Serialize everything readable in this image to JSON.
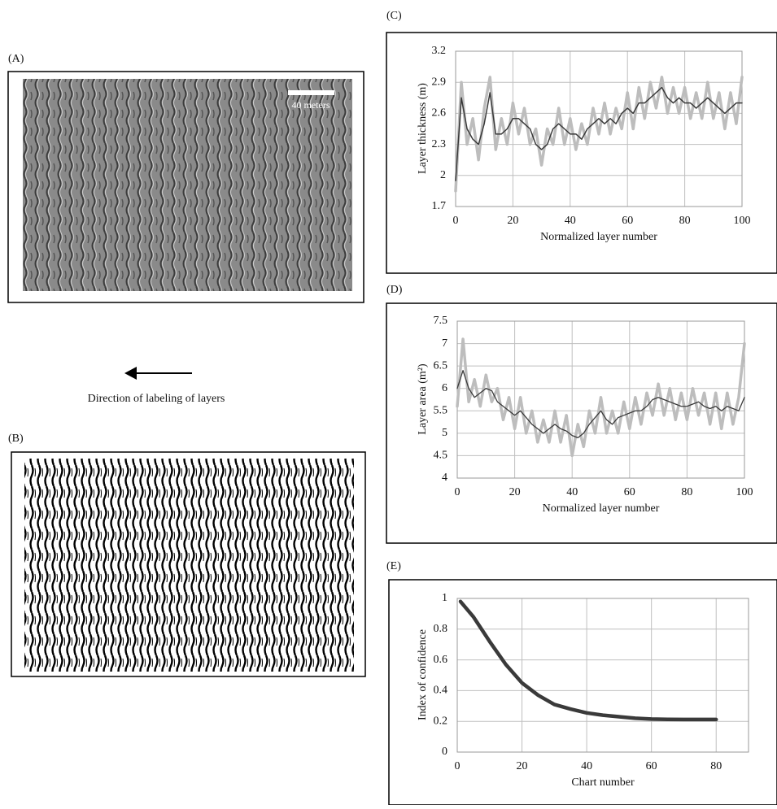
{
  "figure": {
    "panel_a": "(A)",
    "panel_b": "(B)",
    "scale_bar": "40 meters",
    "arrow_caption": "Direction of labeling of layers"
  },
  "chart_data": [
    {
      "type": "line",
      "panel_label": "(C)",
      "x_label": "Normalized layer number",
      "y_label": "Layer thickness (m)",
      "x": [
        0,
        2,
        4,
        6,
        8,
        10,
        12,
        14,
        16,
        18,
        20,
        22,
        24,
        26,
        28,
        30,
        32,
        34,
        36,
        38,
        40,
        42,
        44,
        46,
        48,
        50,
        52,
        54,
        56,
        58,
        60,
        62,
        64,
        66,
        68,
        70,
        72,
        74,
        76,
        78,
        80,
        82,
        84,
        86,
        88,
        90,
        92,
        94,
        96,
        98,
        100
      ],
      "series": [
        {
          "color": "#bdbdbd",
          "values": [
            1.85,
            2.9,
            2.3,
            2.55,
            2.15,
            2.65,
            2.95,
            2.25,
            2.55,
            2.3,
            2.7,
            2.4,
            2.65,
            2.3,
            2.45,
            2.1,
            2.45,
            2.3,
            2.65,
            2.3,
            2.55,
            2.25,
            2.5,
            2.3,
            2.65,
            2.4,
            2.7,
            2.4,
            2.65,
            2.45,
            2.8,
            2.45,
            2.85,
            2.55,
            2.9,
            2.65,
            2.95,
            2.6,
            2.85,
            2.6,
            2.85,
            2.55,
            2.8,
            2.55,
            2.9,
            2.55,
            2.8,
            2.45,
            2.8,
            2.5,
            2.95
          ]
        },
        {
          "color": "#3a3a3a",
          "values": [
            1.95,
            2.75,
            2.45,
            2.35,
            2.3,
            2.5,
            2.8,
            2.4,
            2.4,
            2.45,
            2.55,
            2.55,
            2.5,
            2.45,
            2.3,
            2.25,
            2.3,
            2.45,
            2.5,
            2.45,
            2.4,
            2.4,
            2.35,
            2.45,
            2.5,
            2.55,
            2.5,
            2.55,
            2.5,
            2.6,
            2.65,
            2.6,
            2.7,
            2.7,
            2.75,
            2.8,
            2.85,
            2.75,
            2.7,
            2.75,
            2.7,
            2.7,
            2.65,
            2.7,
            2.75,
            2.7,
            2.65,
            2.6,
            2.65,
            2.7,
            2.7
          ]
        }
      ],
      "xlim": [
        0,
        100
      ],
      "xticks": [
        0,
        20,
        40,
        60,
        80,
        100
      ],
      "ylim": [
        1.7,
        3.2
      ],
      "yticks": [
        1.7,
        2,
        2.3,
        2.6,
        2.9,
        3.2
      ],
      "grid": true
    },
    {
      "type": "line",
      "panel_label": "(D)",
      "x_label": "Normalized layer number",
      "y_label": "Layer area (m²)",
      "x": [
        0,
        2,
        4,
        6,
        8,
        10,
        12,
        14,
        16,
        18,
        20,
        22,
        24,
        26,
        28,
        30,
        32,
        34,
        36,
        38,
        40,
        42,
        44,
        46,
        48,
        50,
        52,
        54,
        56,
        58,
        60,
        62,
        64,
        66,
        68,
        70,
        72,
        74,
        76,
        78,
        80,
        82,
        84,
        86,
        88,
        90,
        92,
        94,
        96,
        98,
        100
      ],
      "series": [
        {
          "color": "#bdbdbd",
          "values": [
            5.6,
            7.1,
            5.7,
            6.2,
            5.6,
            6.3,
            5.7,
            6.0,
            5.3,
            5.8,
            5.1,
            5.8,
            5.0,
            5.5,
            4.8,
            5.3,
            4.8,
            5.5,
            4.8,
            5.4,
            4.5,
            5.2,
            4.7,
            5.5,
            5.0,
            5.8,
            5.0,
            5.5,
            5.0,
            5.7,
            5.1,
            5.8,
            5.2,
            5.9,
            5.4,
            6.1,
            5.4,
            6.0,
            5.3,
            5.9,
            5.3,
            6.0,
            5.4,
            5.9,
            5.2,
            5.9,
            5.1,
            5.9,
            5.2,
            5.8,
            7.0
          ]
        },
        {
          "color": "#3a3a3a",
          "values": [
            6.0,
            6.4,
            6.0,
            5.8,
            5.9,
            6.0,
            5.95,
            5.7,
            5.6,
            5.5,
            5.4,
            5.5,
            5.35,
            5.2,
            5.1,
            5.0,
            5.1,
            5.2,
            5.1,
            5.05,
            4.95,
            4.9,
            5.0,
            5.2,
            5.35,
            5.5,
            5.3,
            5.2,
            5.35,
            5.4,
            5.45,
            5.5,
            5.5,
            5.6,
            5.75,
            5.8,
            5.75,
            5.7,
            5.65,
            5.6,
            5.6,
            5.65,
            5.7,
            5.6,
            5.55,
            5.6,
            5.5,
            5.6,
            5.55,
            5.5,
            5.8
          ]
        }
      ],
      "xlim": [
        0,
        100
      ],
      "xticks": [
        0,
        20,
        40,
        60,
        80,
        100
      ],
      "ylim": [
        4,
        7.5
      ],
      "yticks": [
        4,
        4.5,
        5,
        5.5,
        6,
        6.5,
        7,
        7.5
      ],
      "grid": true
    },
    {
      "type": "line",
      "panel_label": "(E)",
      "x_label": "Chart number",
      "y_label": "Index of confidence",
      "x": [
        1,
        5,
        10,
        15,
        20,
        25,
        30,
        35,
        40,
        45,
        50,
        55,
        60,
        65,
        70,
        75,
        80
      ],
      "series": [
        {
          "color": "#3a3a3a",
          "values": [
            0.98,
            0.88,
            0.72,
            0.57,
            0.45,
            0.37,
            0.31,
            0.28,
            0.255,
            0.24,
            0.23,
            0.22,
            0.215,
            0.213,
            0.212,
            0.212,
            0.212
          ]
        }
      ],
      "xlim": [
        0,
        90
      ],
      "xticks": [
        0,
        20,
        40,
        60,
        80
      ],
      "ylim": [
        0,
        1
      ],
      "yticks": [
        0,
        0.2,
        0.4,
        0.6,
        0.8,
        1
      ],
      "grid": true
    }
  ]
}
